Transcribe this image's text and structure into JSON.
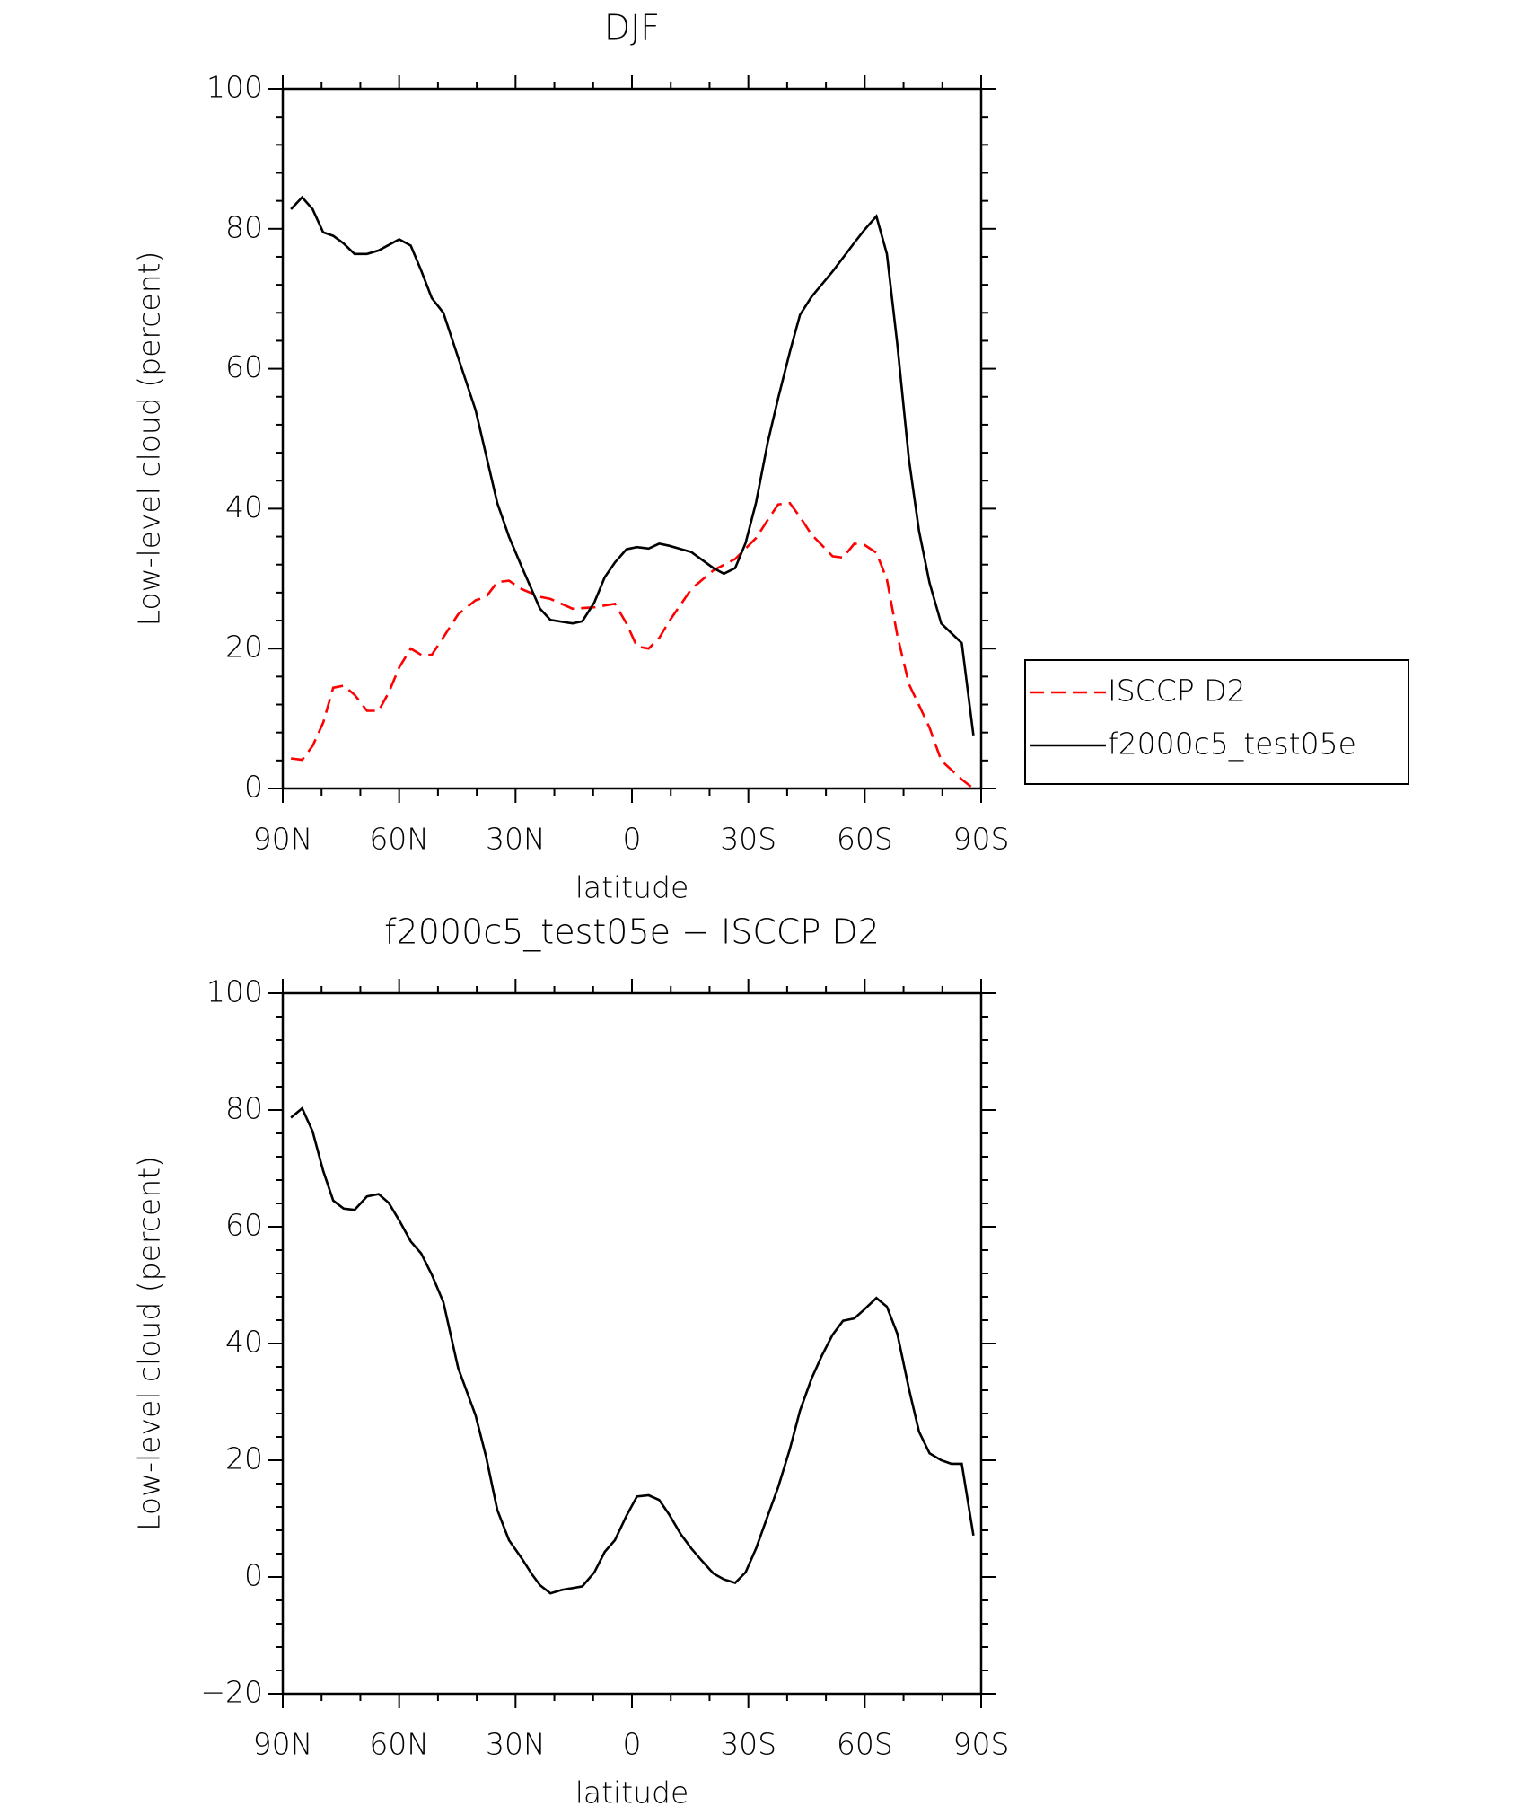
{
  "chart_data": [
    {
      "type": "line",
      "title": "DJF",
      "xlabel": "latitude",
      "ylabel": "Low-level cloud (percent)",
      "xlim": [
        90,
        -90
      ],
      "xticks": [
        {
          "value": 90,
          "label": "90N"
        },
        {
          "value": 60,
          "label": "60N"
        },
        {
          "value": 30,
          "label": "30N"
        },
        0,
        {
          "value": -30,
          "label": "30S"
        },
        {
          "value": -60,
          "label": "60S"
        },
        {
          "value": -90,
          "label": "90S"
        }
      ],
      "ylim": [
        0,
        100
      ],
      "yticks": [
        0,
        20,
        40,
        60,
        80,
        100
      ],
      "legend": "right",
      "series": [
        {
          "name": "ISCCP D2",
          "color": "#ff0000",
          "line_style": "dashed",
          "x": [
            87.9,
            85,
            82.3,
            79.6,
            77,
            74.3,
            71.5,
            68.3,
            65.3,
            62.7,
            60,
            57,
            54.3,
            51.6,
            48.6,
            44.8,
            40.3,
            37.6,
            34.7,
            31.7,
            28.4,
            23.7,
            21,
            15.3,
            9.7,
            4.4,
            1.4,
            -1.3,
            -4.3,
            -7,
            -9.6,
            -15.3,
            -21,
            -26.6,
            -29.3,
            -32,
            -35,
            -37.7,
            -40.7,
            -43.3,
            -46.3,
            -51.7,
            -54.4,
            -57.3,
            -60,
            -63,
            -65.7,
            -68.4,
            -71.4,
            -74,
            -76.7,
            -79.7,
            -85,
            -88
          ],
          "values": [
            4.3,
            4.1,
            6.1,
            9.4,
            14.4,
            14.7,
            13.4,
            11.1,
            11.1,
            13.7,
            17.3,
            20,
            19.1,
            19.1,
            21.6,
            24.9,
            26.9,
            27.4,
            29.5,
            29.7,
            28.5,
            27.4,
            27.1,
            25.7,
            25.9,
            26.4,
            23.6,
            20.3,
            20,
            21.5,
            23.9,
            28.5,
            31.2,
            32.8,
            34.3,
            35.8,
            38.4,
            40.6,
            40.8,
            38.8,
            36.3,
            33.2,
            33,
            35,
            34.8,
            33.7,
            29.9,
            21.9,
            14.9,
            11.9,
            8.7,
            4,
            1.3,
            0
          ]
        },
        {
          "name": "f2000c5_test05e",
          "color": "#000000",
          "line_style": "solid",
          "x": [
            87.9,
            85,
            82.3,
            79.6,
            77,
            74.3,
            71.5,
            68.3,
            65.3,
            60,
            57,
            54.3,
            51.6,
            48.6,
            44.8,
            40.3,
            34.7,
            31.7,
            28.4,
            23.7,
            21,
            15.3,
            12.8,
            9.7,
            7,
            4.4,
            1.4,
            -1.3,
            -4.3,
            -7,
            -9.6,
            -15.3,
            -21,
            -23.7,
            -26.6,
            -29.3,
            -32,
            -35,
            -37.7,
            -40.7,
            -43.3,
            -46.3,
            -51.7,
            -57.3,
            -60,
            -63,
            -65.7,
            -68.4,
            -71.4,
            -74,
            -76.7,
            -79.7,
            -85,
            -88
          ],
          "values": [
            82.8,
            84.5,
            82.8,
            79.5,
            79,
            77.9,
            76.4,
            76.4,
            76.9,
            78.5,
            77.6,
            74,
            70.1,
            68,
            61.6,
            54.1,
            40.8,
            36,
            31.7,
            25.7,
            24.1,
            23.6,
            23.9,
            26.6,
            30.2,
            32.3,
            34.2,
            34.5,
            34.3,
            35,
            34.7,
            33.8,
            31.5,
            30.7,
            31.5,
            35.1,
            40.9,
            49.5,
            55.8,
            62.4,
            67.7,
            70.3,
            73.9,
            78,
            79.9,
            81.8,
            76.4,
            63.5,
            47,
            36.8,
            29.4,
            23.6,
            20.8,
            7.6
          ]
        }
      ]
    },
    {
      "type": "line",
      "title": "f2000c5_test05e − ISCCP D2",
      "xlabel": "latitude",
      "ylabel": "Low-level cloud (percent)",
      "xlim": [
        90,
        -90
      ],
      "xticks": [
        {
          "value": 90,
          "label": "90N"
        },
        {
          "value": 60,
          "label": "60N"
        },
        {
          "value": 30,
          "label": "30N"
        },
        0,
        {
          "value": -30,
          "label": "30S"
        },
        {
          "value": -60,
          "label": "60S"
        },
        {
          "value": -90,
          "label": "90S"
        }
      ],
      "ylim": [
        -20,
        100
      ],
      "yticks": [
        {
          "value": -20,
          "label": "−20"
        },
        0,
        20,
        40,
        60,
        80,
        100
      ],
      "series": [
        {
          "color": "#000000",
          "line_style": "solid",
          "x": [
            87.9,
            85,
            82.3,
            79.6,
            77,
            74.3,
            71.5,
            68.3,
            65.3,
            62.7,
            60,
            57,
            54.3,
            51.6,
            48.6,
            44.8,
            40.3,
            37.6,
            34.7,
            31.7,
            28.4,
            25.7,
            23.7,
            21,
            18,
            12.8,
            9.7,
            7,
            4.4,
            1.4,
            -1.3,
            -4.3,
            -7,
            -9.6,
            -12.6,
            -15.3,
            -18,
            -21,
            -23.7,
            -26.6,
            -29.3,
            -32,
            -35,
            -37.7,
            -40.7,
            -43.3,
            -46.3,
            -49,
            -51.7,
            -54.4,
            -57.3,
            -60,
            -63,
            -65.7,
            -68.4,
            -71.4,
            -74,
            -76.7,
            -79.7,
            -82.3,
            -85,
            -88
          ],
          "values": [
            78.7,
            80.3,
            76.3,
            69.6,
            64.5,
            63.1,
            62.9,
            65.2,
            65.6,
            64.1,
            61.1,
            57.5,
            55.4,
            51.8,
            47.1,
            35.8,
            27.7,
            20.6,
            11.5,
            6.3,
            3.2,
            0.4,
            -1.4,
            -2.8,
            -2.2,
            -1.6,
            0.8,
            4.3,
            6.3,
            10.5,
            13.8,
            14,
            13.2,
            10.7,
            7.3,
            4.9,
            2.8,
            0.6,
            -0.4,
            -1,
            0.8,
            4.9,
            10.5,
            15.4,
            21.9,
            28.5,
            34,
            38,
            41.5,
            43.9,
            44.3,
            45.9,
            47.8,
            46.3,
            41.7,
            32.2,
            24.9,
            21.2,
            20,
            19.4,
            19.4,
            7.1
          ]
        }
      ]
    }
  ]
}
